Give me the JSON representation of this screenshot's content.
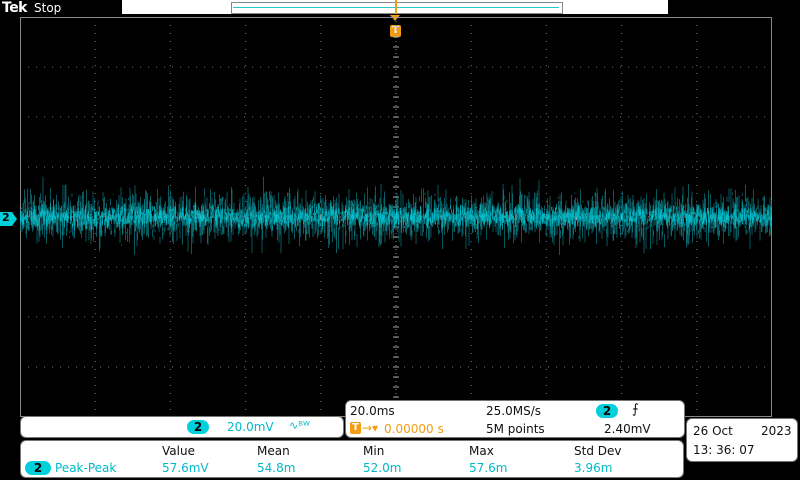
{
  "header": {
    "brand": "Tek",
    "acquisition_state": "Stop"
  },
  "trigger": {
    "marker_label": "T",
    "position_readout": "0.00000 s",
    "level": "2.40mV",
    "slope_symbol": "⨍"
  },
  "channel": {
    "number": "2",
    "scale": "20.0mV",
    "bandwidth_icon_glyph": "∿ᴮᵂ",
    "color": "#00c8d6"
  },
  "horizontal": {
    "time_per_div": "20.0ms",
    "sample_rate": "25.0MS/s",
    "record_length": "5M points"
  },
  "datetime": {
    "date": "26 Oct",
    "year": "2023",
    "time": "13: 36: 07"
  },
  "measurements": {
    "headers": [
      "Value",
      "Mean",
      "Min",
      "Max",
      "Std Dev"
    ],
    "row": {
      "channel": "2",
      "name": "Peak-Peak",
      "values": [
        "57.6mV",
        "54.8m",
        "52.0m",
        "57.6m",
        "3.96m"
      ]
    }
  },
  "chart_data": {
    "type": "line",
    "title": "",
    "series": [
      {
        "name": "CH2",
        "description": "noise waveform centered at channel 2 ground"
      }
    ],
    "xlabel": "",
    "ylabel": "",
    "grid": true,
    "divisions": {
      "horizontal": 10,
      "vertical": 8
    },
    "ylim_div": [
      -4,
      4
    ]
  }
}
